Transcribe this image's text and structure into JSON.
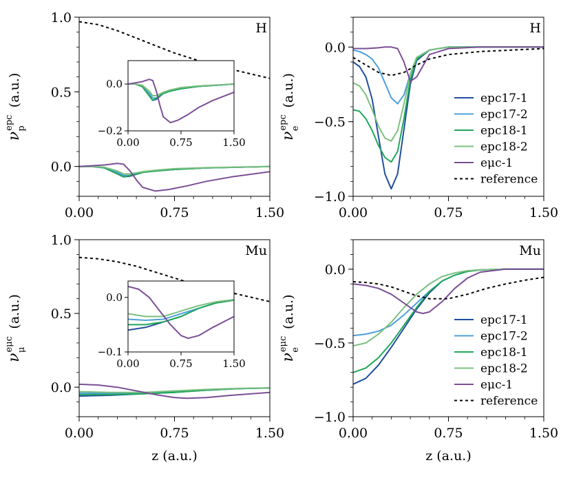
{
  "colors": {
    "epc17-1": "#1f4e9e",
    "epc17-2": "#4c9fdb",
    "epc18-1": "#1fa85a",
    "epc18-2": "#7bbf7f",
    "emc-1": "#7a4e96",
    "reference": "#000000"
  },
  "chart_data": [
    {
      "id": "top-left",
      "type": "line",
      "tag": "H",
      "ylabel": {
        "symbol": "ν",
        "sup": "epc",
        "sub": "p",
        "unit": "(a.u.)"
      },
      "xlabel": "",
      "xlim": [
        0,
        1.5
      ],
      "ylim": [
        -0.2,
        1.0
      ],
      "xticks": [
        "0.00",
        "0.75",
        "1.50"
      ],
      "yticks": [
        "0.0",
        "0.5",
        "1.0"
      ],
      "series": [
        {
          "name": "reference",
          "style": "dashed",
          "x": [
            0,
            0.15,
            0.3,
            0.45,
            0.6,
            0.75,
            0.9,
            1.05,
            1.2,
            1.35,
            1.5
          ],
          "y": [
            0.97,
            0.95,
            0.91,
            0.86,
            0.81,
            0.76,
            0.72,
            0.68,
            0.65,
            0.62,
            0.59
          ]
        },
        {
          "name": "epc17-1",
          "x": [
            0,
            0.1,
            0.2,
            0.3,
            0.35,
            0.4,
            0.5,
            0.6,
            0.75,
            1.0,
            1.25,
            1.5
          ],
          "y": [
            0.0,
            0.0,
            -0.01,
            -0.05,
            -0.07,
            -0.065,
            -0.04,
            -0.03,
            -0.02,
            -0.01,
            -0.005,
            0.0
          ]
        },
        {
          "name": "epc17-2",
          "x": [
            0,
            0.1,
            0.2,
            0.3,
            0.35,
            0.4,
            0.5,
            0.6,
            0.75,
            1.0,
            1.25,
            1.5
          ],
          "y": [
            0.0,
            0.0,
            -0.01,
            -0.04,
            -0.06,
            -0.06,
            -0.04,
            -0.03,
            -0.02,
            -0.01,
            -0.005,
            0.0
          ]
        },
        {
          "name": "epc18-1",
          "x": [
            0,
            0.1,
            0.2,
            0.3,
            0.35,
            0.4,
            0.5,
            0.6,
            0.75,
            1.0,
            1.25,
            1.5
          ],
          "y": [
            0.0,
            0.0,
            -0.01,
            -0.05,
            -0.07,
            -0.06,
            -0.04,
            -0.03,
            -0.02,
            -0.01,
            -0.005,
            0.0
          ]
        },
        {
          "name": "epc18-2",
          "x": [
            0,
            0.1,
            0.2,
            0.3,
            0.35,
            0.4,
            0.5,
            0.6,
            0.75,
            1.0,
            1.25,
            1.5
          ],
          "y": [
            0.0,
            0.0,
            -0.005,
            -0.03,
            -0.05,
            -0.05,
            -0.035,
            -0.025,
            -0.015,
            -0.008,
            -0.004,
            0.0
          ]
        },
        {
          "name": "eμc-1",
          "x": [
            0,
            0.1,
            0.2,
            0.3,
            0.35,
            0.4,
            0.45,
            0.5,
            0.6,
            0.7,
            0.85,
            1.0,
            1.2,
            1.5
          ],
          "y": [
            0.0,
            0.005,
            0.01,
            0.02,
            0.015,
            -0.03,
            -0.09,
            -0.14,
            -0.165,
            -0.155,
            -0.13,
            -0.1,
            -0.07,
            -0.035
          ]
        }
      ],
      "inset": {
        "xlim": [
          0,
          1.5
        ],
        "ylim": [
          -0.2,
          0.1
        ],
        "xticks": [
          "0.00",
          "0.75",
          "1.50"
        ],
        "yticks": [
          "−0.2",
          "0.0"
        ]
      }
    },
    {
      "id": "top-right",
      "type": "line",
      "tag": "H",
      "ylabel": {
        "symbol": "ν",
        "sup": "epc",
        "sub": "e",
        "unit": "(a.u.)"
      },
      "xlabel": "",
      "xlim": [
        0,
        1.5
      ],
      "ylim": [
        -1.0,
        0.2
      ],
      "xticks": [
        "0.00",
        "0.75",
        "1.50"
      ],
      "yticks": [
        "−1.0",
        "−0.5",
        "0.0"
      ],
      "legend": [
        "epc17-1",
        "epc17-2",
        "epc18-1",
        "epc18-2",
        "eμc-1",
        "reference"
      ],
      "series": [
        {
          "name": "epc17-1",
          "x": [
            0,
            0.05,
            0.1,
            0.15,
            0.2,
            0.25,
            0.3,
            0.35,
            0.4,
            0.45,
            0.5,
            0.6,
            0.75,
            1.0,
            1.5
          ],
          "y": [
            -0.1,
            -0.13,
            -0.2,
            -0.35,
            -0.6,
            -0.85,
            -0.95,
            -0.85,
            -0.55,
            -0.25,
            -0.09,
            -0.02,
            0.0,
            0.0,
            0.0
          ]
        },
        {
          "name": "epc17-2",
          "x": [
            0,
            0.05,
            0.1,
            0.15,
            0.2,
            0.25,
            0.3,
            0.35,
            0.4,
            0.45,
            0.5,
            0.6,
            0.75,
            1.0,
            1.5
          ],
          "y": [
            -0.02,
            -0.03,
            -0.05,
            -0.08,
            -0.14,
            -0.24,
            -0.34,
            -0.38,
            -0.32,
            -0.18,
            -0.07,
            -0.02,
            0.0,
            0.0,
            0.0
          ]
        },
        {
          "name": "epc18-1",
          "x": [
            0,
            0.05,
            0.1,
            0.15,
            0.2,
            0.25,
            0.3,
            0.35,
            0.4,
            0.45,
            0.5,
            0.6,
            0.75,
            1.0,
            1.5
          ],
          "y": [
            -0.42,
            -0.43,
            -0.48,
            -0.56,
            -0.66,
            -0.74,
            -0.77,
            -0.7,
            -0.48,
            -0.22,
            -0.08,
            -0.02,
            0.0,
            0.0,
            0.0
          ]
        },
        {
          "name": "epc18-2",
          "x": [
            0,
            0.05,
            0.1,
            0.15,
            0.2,
            0.25,
            0.3,
            0.35,
            0.4,
            0.45,
            0.5,
            0.6,
            0.75,
            1.0,
            1.5
          ],
          "y": [
            -0.24,
            -0.26,
            -0.32,
            -0.42,
            -0.53,
            -0.61,
            -0.63,
            -0.56,
            -0.38,
            -0.18,
            -0.07,
            -0.02,
            0.0,
            0.0,
            0.0
          ]
        },
        {
          "name": "eμc-1",
          "x": [
            0,
            0.1,
            0.2,
            0.25,
            0.3,
            0.35,
            0.4,
            0.45,
            0.5,
            0.6,
            0.75,
            1.0,
            1.5
          ],
          "y": [
            -0.01,
            -0.01,
            -0.005,
            0.0,
            0.0,
            -0.01,
            -0.1,
            -0.23,
            -0.2,
            -0.05,
            -0.01,
            0.0,
            0.0
          ]
        },
        {
          "name": "reference",
          "style": "dashed",
          "x": [
            0,
            0.1,
            0.2,
            0.3,
            0.4,
            0.5,
            0.6,
            0.75,
            1.0,
            1.25,
            1.5
          ],
          "y": [
            -0.07,
            -0.12,
            -0.17,
            -0.19,
            -0.17,
            -0.12,
            -0.08,
            -0.05,
            -0.03,
            -0.02,
            -0.01
          ]
        }
      ]
    },
    {
      "id": "bottom-left",
      "type": "line",
      "tag": "Mu",
      "ylabel": {
        "symbol": "ν",
        "sup": "eμc",
        "sub": "μ",
        "unit": "(a.u.)"
      },
      "xlabel": "z (a.u.)",
      "xlim": [
        0,
        1.5
      ],
      "ylim": [
        -0.2,
        1.0
      ],
      "xticks": [
        "0.00",
        "0.75",
        "1.50"
      ],
      "yticks": [
        "0.0",
        "0.5",
        "1.0"
      ],
      "series": [
        {
          "name": "reference",
          "style": "dashed",
          "x": [
            0,
            0.15,
            0.3,
            0.45,
            0.6,
            0.75,
            0.9,
            1.05,
            1.2,
            1.35,
            1.5
          ],
          "y": [
            0.88,
            0.87,
            0.85,
            0.82,
            0.78,
            0.74,
            0.7,
            0.67,
            0.64,
            0.61,
            0.58
          ]
        },
        {
          "name": "epc17-1",
          "x": [
            0,
            0.25,
            0.5,
            0.75,
            1.0,
            1.25,
            1.5
          ],
          "y": [
            -0.06,
            -0.055,
            -0.045,
            -0.035,
            -0.02,
            -0.01,
            -0.005
          ]
        },
        {
          "name": "epc17-2",
          "x": [
            0,
            0.25,
            0.5,
            0.75,
            1.0,
            1.25,
            1.5
          ],
          "y": [
            -0.04,
            -0.042,
            -0.04,
            -0.03,
            -0.02,
            -0.01,
            -0.005
          ]
        },
        {
          "name": "epc18-1",
          "x": [
            0,
            0.25,
            0.5,
            0.75,
            1.0,
            1.25,
            1.5
          ],
          "y": [
            -0.05,
            -0.05,
            -0.045,
            -0.035,
            -0.02,
            -0.01,
            -0.005
          ]
        },
        {
          "name": "epc18-2",
          "x": [
            0,
            0.25,
            0.5,
            0.75,
            1.0,
            1.25,
            1.5
          ],
          "y": [
            -0.03,
            -0.035,
            -0.035,
            -0.025,
            -0.015,
            -0.008,
            -0.004
          ]
        },
        {
          "name": "eμc-1",
          "x": [
            0,
            0.15,
            0.3,
            0.45,
            0.6,
            0.75,
            0.85,
            1.0,
            1.2,
            1.5
          ],
          "y": [
            0.02,
            0.015,
            0.0,
            -0.025,
            -0.05,
            -0.07,
            -0.075,
            -0.07,
            -0.055,
            -0.035
          ]
        }
      ],
      "inset": {
        "xlim": [
          0,
          1.5
        ],
        "ylim": [
          -0.1,
          0.03
        ],
        "xticks": [
          "0.00",
          "0.75",
          "1.50"
        ],
        "yticks": [
          "−0.1",
          "0.0"
        ]
      }
    },
    {
      "id": "bottom-right",
      "type": "line",
      "tag": "Mu",
      "ylabel": {
        "symbol": "ν",
        "sup": "eμc",
        "sub": "e",
        "unit": "(a.u.)"
      },
      "xlabel": "z (a.u.)",
      "xlim": [
        0,
        1.5
      ],
      "ylim": [
        -1.0,
        0.2
      ],
      "xticks": [
        "0.00",
        "0.75",
        "1.50"
      ],
      "yticks": [
        "−1.0",
        "−0.5",
        "0.0"
      ],
      "legend": [
        "epc17-1",
        "epc17-2",
        "epc18-1",
        "epc18-2",
        "eμc-1",
        "reference"
      ],
      "series": [
        {
          "name": "epc17-1",
          "x": [
            0,
            0.1,
            0.2,
            0.3,
            0.4,
            0.5,
            0.6,
            0.7,
            0.8,
            0.9,
            1.0,
            1.2,
            1.5
          ],
          "y": [
            -0.78,
            -0.74,
            -0.65,
            -0.53,
            -0.4,
            -0.27,
            -0.16,
            -0.08,
            -0.04,
            -0.015,
            -0.005,
            0.0,
            0.0
          ]
        },
        {
          "name": "epc17-2",
          "x": [
            0,
            0.1,
            0.2,
            0.3,
            0.4,
            0.5,
            0.6,
            0.7,
            0.8,
            0.9,
            1.0,
            1.2,
            1.5
          ],
          "y": [
            -0.45,
            -0.44,
            -0.42,
            -0.38,
            -0.31,
            -0.23,
            -0.15,
            -0.08,
            -0.04,
            -0.015,
            -0.005,
            0.0,
            0.0
          ]
        },
        {
          "name": "epc18-1",
          "x": [
            0,
            0.1,
            0.2,
            0.3,
            0.4,
            0.5,
            0.6,
            0.7,
            0.8,
            0.9,
            1.0,
            1.2,
            1.5
          ],
          "y": [
            -0.7,
            -0.67,
            -0.6,
            -0.5,
            -0.38,
            -0.26,
            -0.15,
            -0.08,
            -0.04,
            -0.015,
            -0.005,
            0.0,
            0.0
          ]
        },
        {
          "name": "epc18-2",
          "x": [
            0,
            0.1,
            0.2,
            0.3,
            0.4,
            0.5,
            0.6,
            0.7,
            0.8,
            0.9,
            1.0,
            1.2,
            1.5
          ],
          "y": [
            -0.52,
            -0.5,
            -0.44,
            -0.36,
            -0.26,
            -0.17,
            -0.1,
            -0.05,
            -0.025,
            -0.01,
            -0.004,
            0.0,
            0.0
          ]
        },
        {
          "name": "eμc-1",
          "x": [
            0,
            0.1,
            0.2,
            0.3,
            0.4,
            0.5,
            0.55,
            0.6,
            0.7,
            0.8,
            0.9,
            1.0,
            1.2,
            1.5
          ],
          "y": [
            -0.1,
            -0.11,
            -0.13,
            -0.17,
            -0.23,
            -0.29,
            -0.3,
            -0.29,
            -0.22,
            -0.13,
            -0.06,
            -0.02,
            0.0,
            0.0
          ]
        },
        {
          "name": "reference",
          "style": "dashed",
          "x": [
            0,
            0.1,
            0.2,
            0.3,
            0.4,
            0.5,
            0.6,
            0.75,
            0.9,
            1.05,
            1.2,
            1.35,
            1.5
          ],
          "y": [
            -0.085,
            -0.09,
            -0.1,
            -0.12,
            -0.15,
            -0.18,
            -0.2,
            -0.2,
            -0.17,
            -0.13,
            -0.1,
            -0.075,
            -0.055
          ]
        }
      ]
    }
  ]
}
